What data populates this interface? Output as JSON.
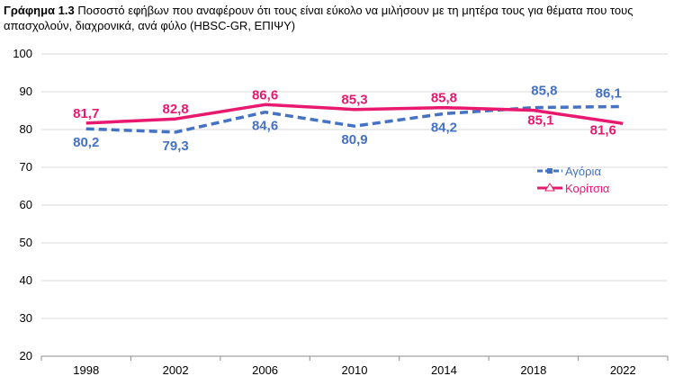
{
  "header": {
    "title_bold": "Γράφημα 1.3",
    "title_rest": " Ποσοστό εφήβων που αναφέρουν ότι τους είναι εύκολο να μιλήσουν με τη μητέρα τους για θέματα που τους απασχολούν, διαχρονικά, ανά φύλο (HBSC-GR, ΕΠΙΨΥ)"
  },
  "chart_data": {
    "type": "line",
    "categories": [
      "1998",
      "2002",
      "2006",
      "2010",
      "2014",
      "2018",
      "2022"
    ],
    "ylim": [
      20,
      100
    ],
    "yticks": [
      "20",
      "30",
      "40",
      "50",
      "60",
      "70",
      "80",
      "90",
      "100"
    ],
    "grid": true,
    "legend_position": "right",
    "series": [
      {
        "name": "Αγόρια",
        "color": "#4472C4",
        "style": "dashed",
        "values": [
          80.2,
          79.3,
          84.6,
          80.9,
          84.2,
          85.8,
          86.1
        ],
        "labels": [
          "80,2",
          "79,3",
          "84,6",
          "80,9",
          "84,2",
          "85,8",
          "86,1"
        ]
      },
      {
        "name": "Κορίτσια",
        "color": "#E8196E",
        "style": "solid",
        "values": [
          81.7,
          82.8,
          86.6,
          85.3,
          85.8,
          85.1,
          81.6
        ],
        "labels": [
          "81,7",
          "82,8",
          "86,6",
          "85,3",
          "85,8",
          "85,1",
          "81,6"
        ]
      }
    ]
  }
}
